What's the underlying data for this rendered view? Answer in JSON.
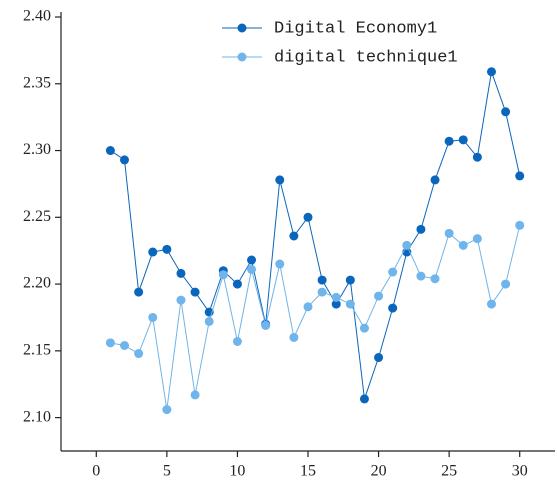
{
  "chart_data": {
    "type": "line",
    "x": [
      1,
      2,
      3,
      4,
      5,
      6,
      7,
      8,
      9,
      10,
      11,
      12,
      13,
      14,
      15,
      16,
      17,
      18,
      19,
      20,
      21,
      22,
      23,
      24,
      25,
      26,
      27,
      28,
      29,
      30
    ],
    "series": [
      {
        "name": "Digital Economy1",
        "color": "#0a66bd",
        "values": [
          2.3,
          2.293,
          2.194,
          2.224,
          2.226,
          2.208,
          2.194,
          2.179,
          2.21,
          2.2,
          2.218,
          2.17,
          2.278,
          2.236,
          2.25,
          2.203,
          2.185,
          2.203,
          2.114,
          2.145,
          2.182,
          2.224,
          2.241,
          2.278,
          2.307,
          2.308,
          2.295,
          2.359,
          2.329,
          2.281
        ]
      },
      {
        "name": "digital technique1",
        "color": "#6fb4ea",
        "values": [
          2.156,
          2.154,
          2.148,
          2.175,
          2.106,
          2.188,
          2.117,
          2.172,
          2.207,
          2.157,
          2.211,
          2.169,
          2.215,
          2.16,
          2.183,
          2.194,
          2.19,
          2.185,
          2.167,
          2.191,
          2.209,
          2.229,
          2.206,
          2.204,
          2.238,
          2.229,
          2.234,
          2.185,
          2.2,
          2.244
        ]
      }
    ],
    "xlim": [
      -2.5,
      32.5
    ],
    "xticks": [
      0,
      5,
      10,
      15,
      20,
      25,
      30
    ],
    "ylim": [
      2.075,
      2.4
    ],
    "yticks": [
      {
        "value": 2.1,
        "label": "2.10"
      },
      {
        "value": 2.15,
        "label": "2.15"
      },
      {
        "value": 2.2,
        "label": "2.20"
      },
      {
        "value": 2.25,
        "label": "2.25"
      },
      {
        "value": 2.3,
        "label": "2.30"
      },
      {
        "value": 2.35,
        "label": "2.35"
      },
      {
        "value": 2.4,
        "label": "2.40"
      }
    ],
    "legend": "upper center"
  }
}
